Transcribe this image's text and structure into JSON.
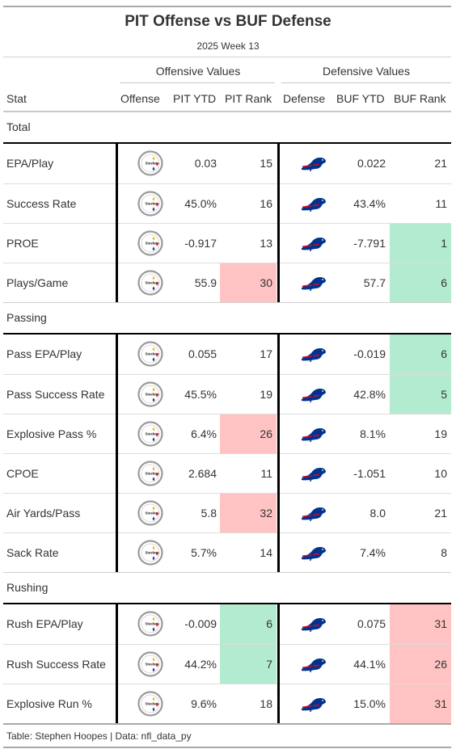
{
  "title": "PIT Offense vs BUF Defense",
  "subtitle": "2025 Week 13",
  "spanners": {
    "offense": "Offensive Values",
    "defense": "Defensive Values"
  },
  "columns": {
    "stat": "Stat",
    "offense": "Offense",
    "off_ytd": "PIT YTD",
    "off_rank": "PIT Rank",
    "defense": "Defense",
    "def_ytd": "BUF YTD",
    "def_rank": "BUF Rank"
  },
  "colors": {
    "good": "#b2ebd0",
    "bad": "#ffc3c3",
    "steelers_yellow": "#f9b612",
    "steelers_red": "#d4202c",
    "steelers_blue": "#2c3e94",
    "bills_blue": "#00338d",
    "bills_red": "#c60c30"
  },
  "groups": [
    {
      "label": "Total",
      "rows": [
        {
          "stat": "EPA/Play",
          "off_ytd": "0.03",
          "off_rank": "15",
          "def_ytd": "0.022",
          "def_rank": "21",
          "off_hl": "",
          "def_hl": ""
        },
        {
          "stat": "Success Rate",
          "off_ytd": "45.0%",
          "off_rank": "16",
          "def_ytd": "43.4%",
          "def_rank": "11",
          "off_hl": "",
          "def_hl": ""
        },
        {
          "stat": "PROE",
          "off_ytd": "-0.917",
          "off_rank": "13",
          "def_ytd": "-7.791",
          "def_rank": "1",
          "off_hl": "",
          "def_hl": "good"
        },
        {
          "stat": "Plays/Game",
          "off_ytd": "55.9",
          "off_rank": "30",
          "def_ytd": "57.7",
          "def_rank": "6",
          "off_hl": "bad",
          "def_hl": "good"
        }
      ]
    },
    {
      "label": "Passing",
      "rows": [
        {
          "stat": "Pass EPA/Play",
          "off_ytd": "0.055",
          "off_rank": "17",
          "def_ytd": "-0.019",
          "def_rank": "6",
          "off_hl": "",
          "def_hl": "good"
        },
        {
          "stat": "Pass Success Rate",
          "off_ytd": "45.5%",
          "off_rank": "19",
          "def_ytd": "42.8%",
          "def_rank": "5",
          "off_hl": "",
          "def_hl": "good"
        },
        {
          "stat": "Explosive Pass %",
          "off_ytd": "6.4%",
          "off_rank": "26",
          "def_ytd": "8.1%",
          "def_rank": "19",
          "off_hl": "bad",
          "def_hl": ""
        },
        {
          "stat": "CPOE",
          "off_ytd": "2.684",
          "off_rank": "11",
          "def_ytd": "-1.051",
          "def_rank": "10",
          "off_hl": "",
          "def_hl": ""
        },
        {
          "stat": "Air Yards/Pass",
          "off_ytd": "5.8",
          "off_rank": "32",
          "def_ytd": "8.0",
          "def_rank": "21",
          "off_hl": "bad",
          "def_hl": ""
        },
        {
          "stat": "Sack Rate",
          "off_ytd": "5.7%",
          "off_rank": "14",
          "def_ytd": "7.4%",
          "def_rank": "8",
          "off_hl": "",
          "def_hl": ""
        }
      ]
    },
    {
      "label": "Rushing",
      "rows": [
        {
          "stat": "Rush EPA/Play",
          "off_ytd": "-0.009",
          "off_rank": "6",
          "def_ytd": "0.075",
          "def_rank": "31",
          "off_hl": "good",
          "def_hl": "bad"
        },
        {
          "stat": "Rush Success Rate",
          "off_ytd": "44.2%",
          "off_rank": "7",
          "def_ytd": "44.1%",
          "def_rank": "26",
          "off_hl": "good",
          "def_hl": "bad"
        },
        {
          "stat": "Explosive Run %",
          "off_ytd": "9.6%",
          "off_rank": "18",
          "def_ytd": "15.0%",
          "def_rank": "31",
          "off_hl": "",
          "def_hl": "bad"
        }
      ]
    }
  ],
  "footer": "Table: Stephen Hoopes | Data: nfl_data_py"
}
